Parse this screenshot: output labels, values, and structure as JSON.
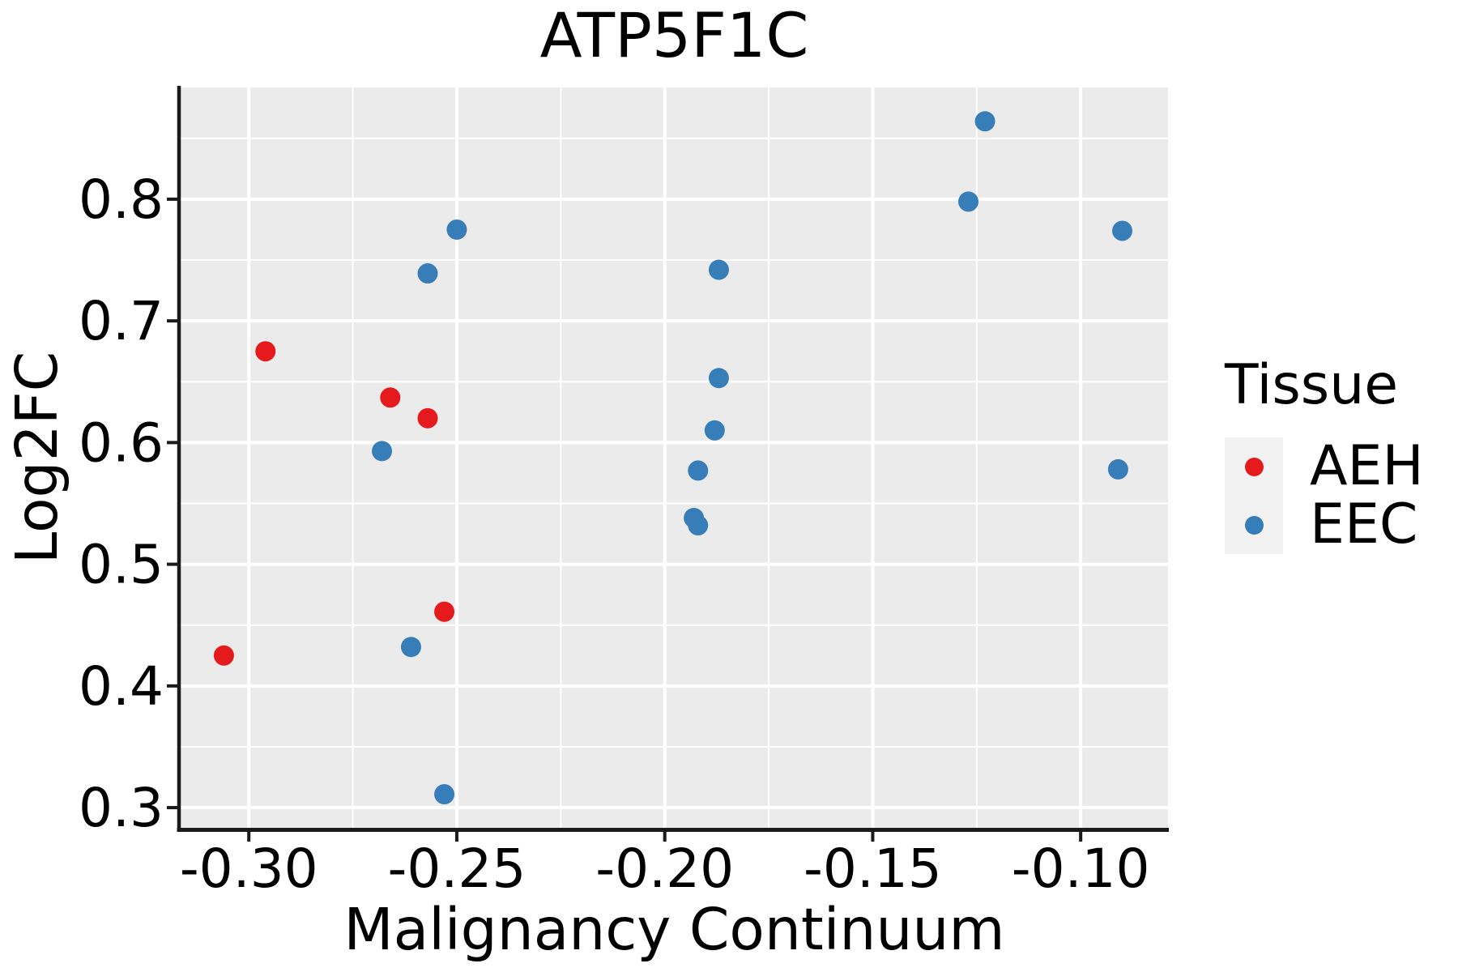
{
  "title": "ATP5F1C",
  "legend": {
    "title": "Tissue",
    "items": [
      {
        "label": "AEH",
        "color": "#e41a1c"
      },
      {
        "label": "EEC",
        "color": "#377eb8"
      }
    ]
  },
  "style": {
    "panel_background": "#ebebeb",
    "grid_color": "#ffffff",
    "legend_key_background": "#f2f2f2",
    "axis_color": "#1a1a1a",
    "text_color": "#000000",
    "point_radius": 12.5
  },
  "chart_data": {
    "type": "scatter",
    "title": "ATP5F1C",
    "xlabel": "Malignancy Continuum",
    "ylabel": "Log2FC",
    "legend_title": "Tissue",
    "legend_position": "right",
    "grid": true,
    "xlim": [
      -0.3164,
      -0.079
    ],
    "ylim": [
      0.2834,
      0.8918
    ],
    "x_major_ticks": [
      -0.3,
      -0.25,
      -0.2,
      -0.15,
      -0.1
    ],
    "x_tick_labels": [
      "-0.30",
      "-0.25",
      "-0.20",
      "-0.15",
      "-0.10"
    ],
    "x_minor_ticks": [
      -0.275,
      -0.225,
      -0.175,
      -0.125
    ],
    "y_major_ticks": [
      0.3,
      0.4,
      0.5,
      0.6,
      0.7,
      0.8
    ],
    "y_tick_labels": [
      "0.3",
      "0.4",
      "0.5",
      "0.6",
      "0.7",
      "0.8"
    ],
    "y_minor_ticks": [
      0.35,
      0.45,
      0.55,
      0.65,
      0.75,
      0.85
    ],
    "series": [
      {
        "name": "AEH",
        "color": "#e41a1c",
        "points": [
          [
            -0.306,
            0.425
          ],
          [
            -0.296,
            0.675
          ],
          [
            -0.266,
            0.637
          ],
          [
            -0.257,
            0.62
          ],
          [
            -0.253,
            0.461
          ]
        ]
      },
      {
        "name": "EEC",
        "color": "#377eb8",
        "points": [
          [
            -0.268,
            0.593
          ],
          [
            -0.261,
            0.432
          ],
          [
            -0.257,
            0.739
          ],
          [
            -0.253,
            0.311
          ],
          [
            -0.25,
            0.775
          ],
          [
            -0.193,
            0.538
          ],
          [
            -0.192,
            0.532
          ],
          [
            -0.192,
            0.577
          ],
          [
            -0.188,
            0.61
          ],
          [
            -0.187,
            0.742
          ],
          [
            -0.187,
            0.653
          ],
          [
            -0.127,
            0.798
          ],
          [
            -0.123,
            0.864
          ],
          [
            -0.091,
            0.578
          ],
          [
            -0.09,
            0.774
          ]
        ]
      }
    ]
  }
}
